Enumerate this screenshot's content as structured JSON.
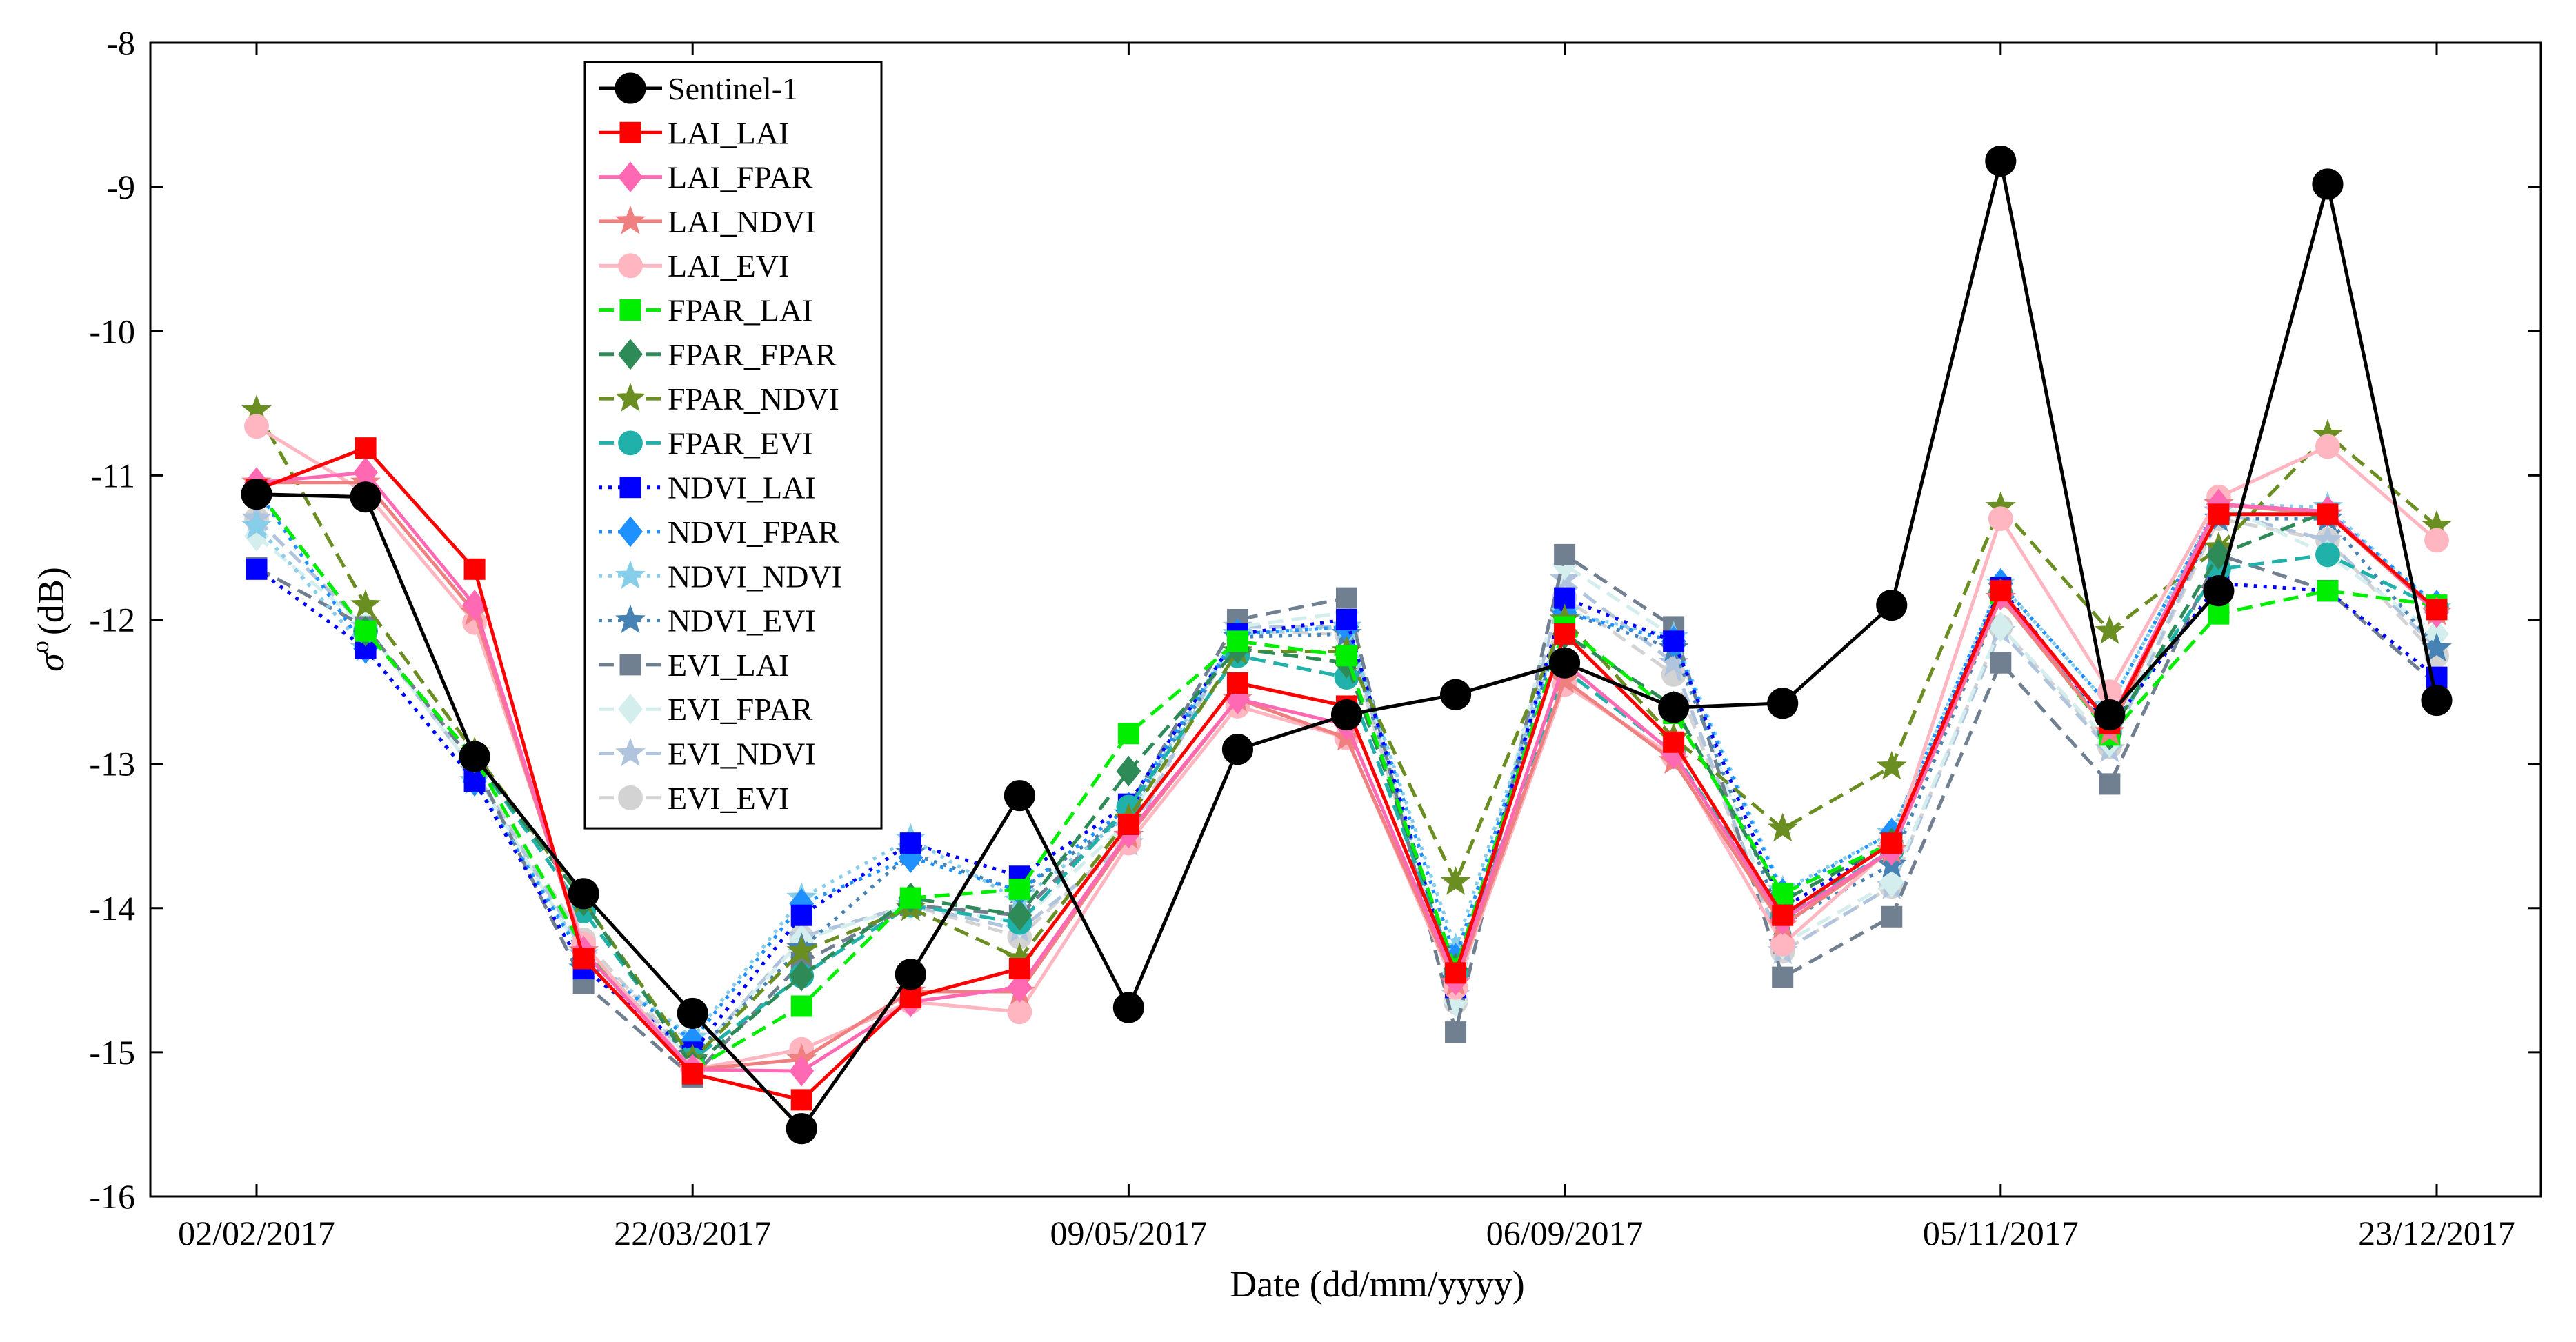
{
  "chart_data": {
    "type": "line",
    "title": "",
    "xlabel": "Date (dd/mm/yyyy)",
    "ylabel_symbol": "σ",
    "ylabel_superscript": "o",
    "ylabel_unit": "(dB)",
    "ylim": [
      -16,
      -8
    ],
    "yticks": [
      -16,
      -15,
      -14,
      -13,
      -12,
      -11,
      -10,
      -9,
      -8
    ],
    "xticks": [
      {
        "index": 0,
        "label": "02/02/2017"
      },
      {
        "index": 4,
        "label": "22/03/2017"
      },
      {
        "index": 8,
        "label": "09/05/2017"
      },
      {
        "index": 12,
        "label": "06/09/2017"
      },
      {
        "index": 16,
        "label": "05/11/2017"
      },
      {
        "index": 20,
        "label": "23/12/2017"
      }
    ],
    "x": [
      0,
      1,
      2,
      3,
      4,
      5,
      6,
      7,
      8,
      9,
      10,
      11,
      12,
      13,
      14,
      15,
      16,
      17,
      18,
      19,
      20
    ],
    "grid": false,
    "legend_position": "top-left",
    "series": [
      {
        "name": "Sentinel-1",
        "color": "#000000",
        "dash": "solid",
        "marker": "circle",
        "values": [
          -11.13,
          -11.15,
          -12.95,
          -13.9,
          -14.73,
          -15.53,
          -14.46,
          -13.22,
          -14.69,
          -12.9,
          -12.66,
          -12.52,
          -12.3,
          -12.61,
          -12.58,
          -11.9,
          -8.82,
          -12.66,
          -11.8,
          -8.98,
          -12.56
        ]
      },
      {
        "name": "LAI_LAI",
        "color": "#ff0000",
        "dash": "solid",
        "marker": "square",
        "values": [
          -11.1,
          -10.81,
          -11.65,
          -14.35,
          -15.15,
          -15.33,
          -14.62,
          -14.42,
          -13.42,
          -12.44,
          -12.6,
          -14.45,
          -12.1,
          -12.85,
          -14.05,
          -13.55,
          -11.8,
          -12.72,
          -11.27,
          -11.27,
          -11.93
        ]
      },
      {
        "name": "LAI_FPAR",
        "color": "#ff69b4",
        "dash": "solid",
        "marker": "diamond",
        "values": [
          -11.05,
          -10.98,
          -11.9,
          -14.3,
          -15.12,
          -15.13,
          -14.65,
          -14.55,
          -13.48,
          -12.55,
          -12.73,
          -14.5,
          -12.3,
          -12.93,
          -14.08,
          -13.6,
          -11.83,
          -12.72,
          -11.2,
          -11.25,
          -11.95
        ]
      },
      {
        "name": "LAI_NDVI",
        "color": "#f08080",
        "dash": "solid",
        "marker": "star",
        "values": [
          -11.05,
          -11.05,
          -11.95,
          -14.3,
          -15.12,
          -15.05,
          -14.58,
          -14.58,
          -13.5,
          -12.55,
          -12.82,
          -14.52,
          -12.42,
          -12.98,
          -14.12,
          -13.6,
          -11.85,
          -12.78,
          -11.2,
          -11.27,
          -11.95
        ]
      },
      {
        "name": "LAI_EVI",
        "color": "#ffb6c1",
        "dash": "solid",
        "marker": "circle",
        "values": [
          -10.66,
          -11.12,
          -12.02,
          -14.25,
          -15.12,
          -14.98,
          -14.65,
          -14.72,
          -13.55,
          -12.6,
          -12.82,
          -14.55,
          -12.45,
          -12.95,
          -14.25,
          -13.58,
          -11.3,
          -12.5,
          -11.15,
          -10.8,
          -11.45
        ]
      },
      {
        "name": "FPAR_LAI",
        "color": "#00ee00",
        "dash": "dashed",
        "marker": "square",
        "values": [
          -11.1,
          -12.08,
          -12.96,
          -14.28,
          -15.12,
          -14.68,
          -13.93,
          -13.87,
          -12.79,
          -12.15,
          -12.25,
          -14.42,
          -12.05,
          -12.65,
          -13.9,
          -13.55,
          -11.82,
          -12.8,
          -11.96,
          -11.8,
          -11.9
        ]
      },
      {
        "name": "FPAR_FPAR",
        "color": "#2e8b57",
        "dash": "dashed",
        "marker": "diamond",
        "values": [
          -11.1,
          -12.08,
          -12.96,
          -13.95,
          -15.1,
          -14.47,
          -13.93,
          -14.05,
          -13.05,
          -12.2,
          -12.3,
          -14.42,
          -12.1,
          -12.6,
          -13.95,
          -13.55,
          -11.82,
          -12.8,
          -11.55,
          -11.25,
          -11.95
        ]
      },
      {
        "name": "FPAR_NDVI",
        "color": "#6b8e23",
        "dash": "dashed",
        "marker": "star",
        "values": [
          -10.55,
          -11.9,
          -12.92,
          -13.95,
          -15.05,
          -14.3,
          -14.0,
          -14.35,
          -13.38,
          -12.22,
          -12.22,
          -13.82,
          -12.0,
          -12.82,
          -13.45,
          -13.02,
          -11.22,
          -12.08,
          -11.5,
          -10.72,
          -11.35
        ]
      },
      {
        "name": "FPAR_EVI",
        "color": "#20b2aa",
        "dash": "dashed",
        "marker": "circle",
        "values": [
          -11.1,
          -12.08,
          -12.96,
          -14.02,
          -15.05,
          -14.47,
          -13.98,
          -14.1,
          -13.3,
          -12.25,
          -12.4,
          -14.45,
          -12.35,
          -12.92,
          -14.05,
          -13.6,
          -11.82,
          -12.78,
          -11.65,
          -11.55,
          -11.92
        ]
      },
      {
        "name": "NDVI_LAI",
        "color": "#0000ff",
        "dash": "dotted",
        "marker": "square",
        "values": [
          -11.65,
          -12.2,
          -13.12,
          -14.42,
          -15.0,
          -14.05,
          -13.55,
          -13.78,
          -13.28,
          -12.1,
          -12.0,
          -14.55,
          -11.85,
          -12.15,
          -14.0,
          -13.55,
          -11.78,
          -12.75,
          -11.75,
          -11.8,
          -12.4
        ]
      },
      {
        "name": "NDVI_FPAR",
        "color": "#1e90ff",
        "dash": "dotted",
        "marker": "diamond",
        "values": [
          -11.1,
          -12.2,
          -13.12,
          -14.35,
          -14.92,
          -13.97,
          -13.65,
          -13.88,
          -13.3,
          -12.1,
          -12.05,
          -14.35,
          -11.95,
          -12.15,
          -13.9,
          -13.48,
          -11.75,
          -12.6,
          -11.2,
          -11.25,
          -11.9
        ]
      },
      {
        "name": "NDVI_NDVI",
        "color": "#87ceeb",
        "dash": "dotted",
        "marker": "star",
        "values": [
          -11.35,
          -12.2,
          -13.12,
          -14.32,
          -14.9,
          -13.93,
          -13.52,
          -13.95,
          -13.35,
          -12.1,
          -12.05,
          -14.28,
          -11.95,
          -12.12,
          -13.88,
          -13.48,
          -11.75,
          -12.6,
          -11.2,
          -11.22,
          -11.92
        ]
      },
      {
        "name": "NDVI_EVI",
        "color": "#4682b4",
        "dash": "dotted",
        "marker": "star",
        "values": [
          -11.35,
          -12.2,
          -13.12,
          -14.42,
          -15.02,
          -14.28,
          -13.62,
          -13.88,
          -13.35,
          -12.12,
          -12.1,
          -14.5,
          -11.95,
          -12.2,
          -14.1,
          -13.7,
          -11.85,
          -12.7,
          -11.3,
          -11.3,
          -12.2
        ]
      },
      {
        "name": "EVI_LAI",
        "color": "#708090",
        "dash": "dashed",
        "marker": "square",
        "values": [
          -11.64,
          -12.05,
          -13.0,
          -14.52,
          -15.17,
          -14.38,
          -13.98,
          -14.05,
          -13.3,
          -12.0,
          -11.85,
          -14.86,
          -11.55,
          -12.05,
          -14.48,
          -14.06,
          -12.3,
          -13.14,
          -11.55,
          -11.8,
          -12.45
        ]
      },
      {
        "name": "EVI_FPAR",
        "color": "#d4eeee",
        "dash": "dashed",
        "marker": "diamond",
        "values": [
          -11.42,
          -12.05,
          -13.05,
          -14.35,
          -15.05,
          -14.22,
          -13.98,
          -14.1,
          -13.4,
          -12.05,
          -11.95,
          -14.65,
          -11.62,
          -12.12,
          -14.25,
          -13.82,
          -12.05,
          -12.85,
          -11.2,
          -11.55,
          -12.1
        ]
      },
      {
        "name": "EVI_NDVI",
        "color": "#b0c4de",
        "dash": "dashed",
        "marker": "star",
        "values": [
          -11.3,
          -12.05,
          -13.05,
          -14.3,
          -15.05,
          -14.2,
          -13.98,
          -14.15,
          -13.55,
          -12.05,
          -12.05,
          -14.6,
          -11.72,
          -12.3,
          -14.3,
          -13.85,
          -12.08,
          -12.9,
          -11.25,
          -11.45,
          -12.2
        ]
      },
      {
        "name": "EVI_EVI",
        "color": "#d3d3d3",
        "dash": "dashed",
        "marker": "circle",
        "values": [
          -11.3,
          -12.05,
          -13.05,
          -14.22,
          -15.05,
          -14.2,
          -13.98,
          -14.2,
          -13.5,
          -12.08,
          -12.1,
          -14.65,
          -11.85,
          -12.38,
          -14.3,
          -13.85,
          -12.05,
          -12.88,
          -11.3,
          -11.45,
          -12.25
        ]
      }
    ]
  }
}
